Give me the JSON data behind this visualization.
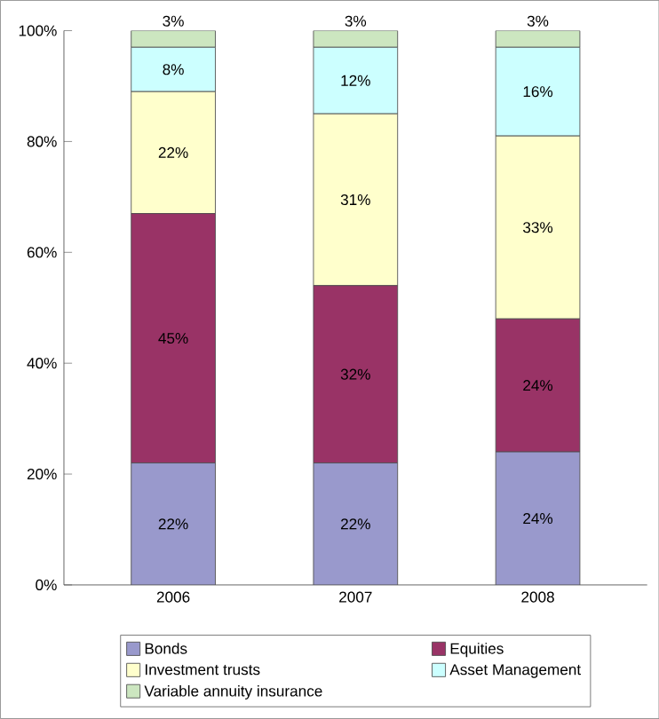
{
  "chart_data": {
    "type": "bar",
    "stacked": true,
    "categories": [
      "2006",
      "2007",
      "2008"
    ],
    "series": [
      {
        "name": "Bonds",
        "color": "#9999cc",
        "values": [
          22,
          22,
          24
        ],
        "value_labels": [
          "22%",
          "22%",
          "24%"
        ]
      },
      {
        "name": "Equities",
        "color": "#993366",
        "values": [
          45,
          32,
          24
        ],
        "value_labels": [
          "45%",
          "32%",
          "24%"
        ]
      },
      {
        "name": "Investment trusts",
        "color": "#ffffcc",
        "values": [
          22,
          31,
          33
        ],
        "value_labels": [
          "22%",
          "31%",
          "33%"
        ]
      },
      {
        "name": "Asset Management",
        "color": "#ccffff",
        "values": [
          8,
          12,
          16
        ],
        "value_labels": [
          "8%",
          "12%",
          "16%"
        ]
      },
      {
        "name": "Variable annuity insurance",
        "color": "#cce6c0",
        "values": [
          3,
          3,
          3
        ],
        "value_labels": [
          "3%",
          "3%",
          "3%"
        ]
      }
    ],
    "ylim": [
      0,
      100
    ],
    "yticks": [
      {
        "value": 0,
        "label": "0%"
      },
      {
        "value": 20,
        "label": "20%"
      },
      {
        "value": 40,
        "label": "40%"
      },
      {
        "value": 60,
        "label": "60%"
      },
      {
        "value": 80,
        "label": "80%"
      },
      {
        "value": 100,
        "label": "100%"
      }
    ],
    "legend": "bottom"
  }
}
